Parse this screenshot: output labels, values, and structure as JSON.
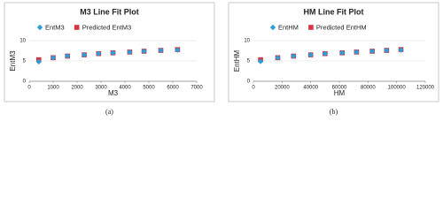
{
  "chart_data": [
    {
      "type": "scatter",
      "title": "M3 Line Fit  Plot",
      "x_label": "M3",
      "y_label": "EntM3",
      "caption": "(a)",
      "x": [
        400,
        1000,
        1600,
        2300,
        2900,
        3500,
        4200,
        4800,
        5500,
        6200
      ],
      "series": [
        {
          "name": "EntM3",
          "color": "#2f9ed8",
          "marker": "diamond",
          "values": [
            4.8,
            5.8,
            6.2,
            6.5,
            6.8,
            7.0,
            7.2,
            7.4,
            7.6,
            7.7
          ]
        },
        {
          "name": "Predicted EntM3",
          "color": "#d8333f",
          "marker": "square",
          "values": [
            5.3,
            5.8,
            6.2,
            6.5,
            6.8,
            7.0,
            7.2,
            7.4,
            7.6,
            7.8
          ]
        }
      ],
      "xlim": [
        0,
        7000
      ],
      "xticks": [
        0,
        1000,
        2000,
        3000,
        4000,
        5000,
        6000,
        7000
      ],
      "ylim": [
        0,
        10
      ],
      "yticks": [
        0,
        5,
        10
      ],
      "grid": true
    },
    {
      "type": "scatter",
      "title": "HM Line Fit  Plot",
      "x_label": "HM",
      "y_label": "EntHM",
      "caption": "(b)",
      "x": [
        5000,
        17000,
        28000,
        40000,
        50000,
        62000,
        72000,
        83000,
        93000,
        103000
      ],
      "series": [
        {
          "name": "EntHM",
          "color": "#2f9ed8",
          "marker": "diamond",
          "values": [
            4.9,
            5.8,
            6.2,
            6.5,
            6.8,
            7.0,
            7.2,
            7.4,
            7.6,
            7.7
          ]
        },
        {
          "name": "Predicted EntHM",
          "color": "#d8333f",
          "marker": "square",
          "values": [
            5.3,
            5.8,
            6.2,
            6.5,
            6.8,
            7.0,
            7.2,
            7.4,
            7.6,
            7.8
          ]
        }
      ],
      "xlim": [
        0,
        120000
      ],
      "xticks": [
        0,
        20000,
        40000,
        60000,
        80000,
        100000,
        120000
      ],
      "ylim": [
        0,
        10
      ],
      "yticks": [
        0,
        5,
        10
      ],
      "grid": true
    }
  ]
}
